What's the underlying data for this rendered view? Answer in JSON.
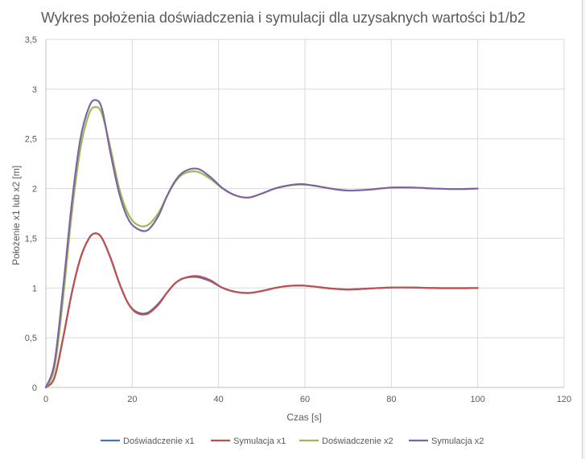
{
  "chart_data": {
    "type": "line",
    "title": "Wykres położenia doświadczenia i symulacji dla uzysaknych wartości b1/b2",
    "xlabel": "Czas [s]",
    "ylabel": "Położenie x1 lub x2 [m]",
    "xlim": [
      0,
      120
    ],
    "ylim": [
      0,
      3.5
    ],
    "x_ticks": [
      0,
      20,
      40,
      60,
      80,
      100,
      120
    ],
    "x_tick_labels": [
      "0",
      "20",
      "40",
      "60",
      "80",
      "100",
      "120"
    ],
    "y_ticks": [
      0,
      0.5,
      1,
      1.5,
      2,
      2.5,
      3,
      3.5
    ],
    "y_tick_labels": [
      "0",
      "0,5",
      "1",
      "1,5",
      "2",
      "2,5",
      "3",
      "3,5"
    ],
    "grid": "vertical and horizontal major",
    "legend_position": "bottom",
    "series": [
      {
        "name": "Doświadczenie x1",
        "color": "#4472c4",
        "x": [
          0,
          2,
          4,
          6,
          8,
          10,
          11.5,
          13,
          15,
          17,
          19,
          21,
          23.5,
          26,
          28,
          30,
          32,
          35,
          38,
          41,
          44,
          47,
          50,
          53,
          56,
          59,
          62,
          66,
          70,
          75,
          80,
          85,
          90,
          95,
          100
        ],
        "y": [
          0,
          0.1,
          0.5,
          0.95,
          1.3,
          1.5,
          1.55,
          1.5,
          1.3,
          1.05,
          0.85,
          0.76,
          0.75,
          0.84,
          0.95,
          1.05,
          1.1,
          1.11,
          1.07,
          1.0,
          0.96,
          0.95,
          0.97,
          1.0,
          1.02,
          1.025,
          1.015,
          0.995,
          0.985,
          0.995,
          1.005,
          1.005,
          0.999,
          0.998,
          1.0
        ]
      },
      {
        "name": "Symulacja x1",
        "color": "#c0504d",
        "x": [
          0,
          2,
          4,
          6,
          8,
          10,
          11.5,
          13,
          15,
          17,
          19,
          21,
          23.5,
          26,
          28,
          30,
          32,
          35,
          38,
          41,
          44,
          47,
          50,
          53,
          56,
          59,
          62,
          66,
          70,
          75,
          80,
          85,
          90,
          95,
          100
        ],
        "y": [
          0,
          0.1,
          0.5,
          0.95,
          1.3,
          1.5,
          1.55,
          1.5,
          1.3,
          1.05,
          0.85,
          0.75,
          0.74,
          0.83,
          0.95,
          1.05,
          1.1,
          1.12,
          1.08,
          1.0,
          0.96,
          0.95,
          0.97,
          1.0,
          1.02,
          1.025,
          1.015,
          0.995,
          0.985,
          0.995,
          1.005,
          1.005,
          0.999,
          0.998,
          1.0
        ]
      },
      {
        "name": "Doświadczenie x2",
        "color": "#9bbb59",
        "x": [
          0,
          2,
          4,
          6,
          8,
          10,
          11.5,
          13,
          15,
          17,
          19,
          21,
          23.5,
          26,
          28,
          30,
          32,
          35,
          38,
          41,
          44,
          47,
          50,
          53,
          56,
          59,
          62,
          66,
          70,
          75,
          80,
          85,
          90,
          95,
          100
        ],
        "y": [
          0,
          0.2,
          0.9,
          1.75,
          2.4,
          2.75,
          2.82,
          2.75,
          2.4,
          2.0,
          1.75,
          1.64,
          1.63,
          1.75,
          1.92,
          2.07,
          2.15,
          2.17,
          2.1,
          2.0,
          1.93,
          1.91,
          1.95,
          2.0,
          2.03,
          2.04,
          2.03,
          2.0,
          1.98,
          1.99,
          2.01,
          2.01,
          2.0,
          1.995,
          2.0
        ]
      },
      {
        "name": "Symulacja x2",
        "color": "#8064a2",
        "x": [
          0,
          2,
          4,
          6,
          8,
          10,
          11.5,
          13,
          15,
          17,
          19,
          21,
          23.5,
          26,
          28,
          30,
          32,
          35,
          38,
          41,
          44,
          47,
          50,
          53,
          56,
          59,
          62,
          66,
          70,
          75,
          80,
          85,
          90,
          95,
          100
        ],
        "y": [
          0,
          0.25,
          1.0,
          1.85,
          2.5,
          2.82,
          2.89,
          2.8,
          2.35,
          1.95,
          1.7,
          1.6,
          1.58,
          1.72,
          1.92,
          2.08,
          2.17,
          2.2,
          2.12,
          2.0,
          1.93,
          1.91,
          1.95,
          2.0,
          2.03,
          2.045,
          2.03,
          2.0,
          1.98,
          1.99,
          2.01,
          2.01,
          2.0,
          1.995,
          2.0
        ]
      }
    ]
  }
}
